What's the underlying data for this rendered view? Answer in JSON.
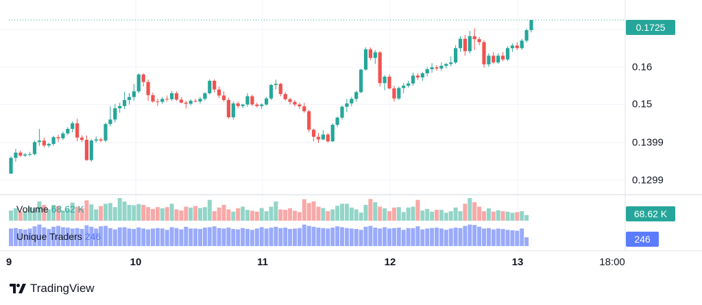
{
  "chart_data": {
    "type": "candlestick",
    "x_ticks": [
      "9",
      "10",
      "11",
      "12",
      "13",
      "18:00"
    ],
    "y_ticks": [
      "0.1299",
      "0.1399",
      "0.15",
      "0.16",
      "0.17"
    ],
    "ylim": [
      0.126,
      0.176
    ],
    "last_price": "0.1725",
    "colors": {
      "up": "#26a69a",
      "down": "#ef5350",
      "traders": "#5b7cff"
    },
    "candles": [
      [
        0.1316,
        0.1362,
        0.1316,
        0.1358
      ],
      [
        0.1358,
        0.1382,
        0.1348,
        0.1372
      ],
      [
        0.1372,
        0.1378,
        0.136,
        0.1364
      ],
      [
        0.1364,
        0.1371,
        0.136,
        0.1367
      ],
      [
        0.1367,
        0.1374,
        0.1362,
        0.1368
      ],
      [
        0.1368,
        0.1404,
        0.1365,
        0.14
      ],
      [
        0.14,
        0.1435,
        0.139,
        0.1404
      ],
      [
        0.1404,
        0.1412,
        0.1386,
        0.1391
      ],
      [
        0.1391,
        0.1398,
        0.1385,
        0.1395
      ],
      [
        0.1395,
        0.1417,
        0.139,
        0.1413
      ],
      [
        0.1413,
        0.142,
        0.14,
        0.141
      ],
      [
        0.141,
        0.1428,
        0.1406,
        0.1423
      ],
      [
        0.1423,
        0.144,
        0.1418,
        0.1435
      ],
      [
        0.1435,
        0.1455,
        0.1426,
        0.145
      ],
      [
        0.145,
        0.1462,
        0.1402,
        0.1412
      ],
      [
        0.1412,
        0.1418,
        0.14,
        0.1406
      ],
      [
        0.1406,
        0.1418,
        0.135,
        0.1352
      ],
      [
        0.1352,
        0.1408,
        0.1348,
        0.1404
      ],
      [
        0.1404,
        0.1415,
        0.1398,
        0.1407
      ],
      [
        0.1407,
        0.1412,
        0.14,
        0.1404
      ],
      [
        0.1404,
        0.1452,
        0.14,
        0.1448
      ],
      [
        0.1448,
        0.1495,
        0.1442,
        0.146
      ],
      [
        0.146,
        0.1502,
        0.1452,
        0.149
      ],
      [
        0.149,
        0.1505,
        0.1478,
        0.1496
      ],
      [
        0.1496,
        0.1534,
        0.1488,
        0.1512
      ],
      [
        0.1512,
        0.153,
        0.15,
        0.152
      ],
      [
        0.152,
        0.1555,
        0.151,
        0.1535
      ],
      [
        0.1535,
        0.1583,
        0.153,
        0.158
      ],
      [
        0.158,
        0.1583,
        0.1548,
        0.156
      ],
      [
        0.156,
        0.1567,
        0.151,
        0.1525
      ],
      [
        0.1525,
        0.1532,
        0.1505,
        0.1508
      ],
      [
        0.1508,
        0.1516,
        0.1496,
        0.1507
      ],
      [
        0.1507,
        0.152,
        0.1502,
        0.1515
      ],
      [
        0.1515,
        0.1524,
        0.1508,
        0.1514
      ],
      [
        0.1514,
        0.1536,
        0.151,
        0.153
      ],
      [
        0.153,
        0.1535,
        0.151,
        0.1513
      ],
      [
        0.1513,
        0.152,
        0.1503,
        0.1505
      ],
      [
        0.1505,
        0.151,
        0.149,
        0.1502
      ],
      [
        0.1502,
        0.1514,
        0.1498,
        0.151
      ],
      [
        0.151,
        0.1515,
        0.1505,
        0.1508
      ],
      [
        0.1508,
        0.152,
        0.1502,
        0.1515
      ],
      [
        0.1515,
        0.1533,
        0.151,
        0.153
      ],
      [
        0.153,
        0.1567,
        0.1526,
        0.1563
      ],
      [
        0.1563,
        0.1567,
        0.1532,
        0.154
      ],
      [
        0.154,
        0.1548,
        0.1517,
        0.1524
      ],
      [
        0.1524,
        0.1535,
        0.1508,
        0.1512
      ],
      [
        0.1512,
        0.1518,
        0.1462,
        0.1466
      ],
      [
        0.1466,
        0.1508,
        0.146,
        0.1503
      ],
      [
        0.1503,
        0.1508,
        0.149,
        0.1496
      ],
      [
        0.1496,
        0.1502,
        0.149,
        0.15
      ],
      [
        0.15,
        0.153,
        0.1494,
        0.1522
      ],
      [
        0.1522,
        0.1527,
        0.1496,
        0.15
      ],
      [
        0.15,
        0.1505,
        0.1492,
        0.1496
      ],
      [
        0.1496,
        0.1503,
        0.1488,
        0.15
      ],
      [
        0.15,
        0.152,
        0.1497,
        0.1516
      ],
      [
        0.1516,
        0.1555,
        0.1512,
        0.1552
      ],
      [
        0.1552,
        0.1566,
        0.154,
        0.1555
      ],
      [
        0.1555,
        0.1558,
        0.1522,
        0.1528
      ],
      [
        0.1528,
        0.1533,
        0.151,
        0.1514
      ],
      [
        0.1514,
        0.1518,
        0.15,
        0.1507
      ],
      [
        0.1507,
        0.1512,
        0.1495,
        0.15
      ],
      [
        0.15,
        0.1505,
        0.1488,
        0.1495
      ],
      [
        0.1495,
        0.1505,
        0.1478,
        0.1482
      ],
      [
        0.1482,
        0.1486,
        0.1426,
        0.1433
      ],
      [
        0.1433,
        0.1436,
        0.1402,
        0.1414
      ],
      [
        0.1414,
        0.1424,
        0.1398,
        0.1407
      ],
      [
        0.1407,
        0.1432,
        0.1405,
        0.142
      ],
      [
        0.142,
        0.1424,
        0.1398,
        0.1402
      ],
      [
        0.1402,
        0.145,
        0.14,
        0.1446
      ],
      [
        0.1446,
        0.1468,
        0.144,
        0.1465
      ],
      [
        0.1465,
        0.1498,
        0.146,
        0.1494
      ],
      [
        0.1494,
        0.1515,
        0.148,
        0.1503
      ],
      [
        0.1503,
        0.152,
        0.1495,
        0.1515
      ],
      [
        0.1515,
        0.1537,
        0.1508,
        0.1533
      ],
      [
        0.1533,
        0.1595,
        0.153,
        0.1593
      ],
      [
        0.1593,
        0.1652,
        0.159,
        0.1647
      ],
      [
        0.1647,
        0.1652,
        0.1618,
        0.1624
      ],
      [
        0.1624,
        0.1645,
        0.1608,
        0.1639
      ],
      [
        0.1639,
        0.1642,
        0.1548,
        0.1557
      ],
      [
        0.1557,
        0.1578,
        0.1538,
        0.1574
      ],
      [
        0.1574,
        0.158,
        0.154,
        0.1543
      ],
      [
        0.1543,
        0.155,
        0.1508,
        0.1516
      ],
      [
        0.1516,
        0.1548,
        0.1512,
        0.1544
      ],
      [
        0.1544,
        0.1557,
        0.153,
        0.155
      ],
      [
        0.155,
        0.1563,
        0.1545,
        0.1556
      ],
      [
        0.1556,
        0.1585,
        0.155,
        0.1577
      ],
      [
        0.1577,
        0.1583,
        0.1565,
        0.1572
      ],
      [
        0.1572,
        0.1587,
        0.1563,
        0.1583
      ],
      [
        0.1583,
        0.16,
        0.1575,
        0.1594
      ],
      [
        0.1594,
        0.161,
        0.1585,
        0.1599
      ],
      [
        0.1599,
        0.1605,
        0.159,
        0.1596
      ],
      [
        0.1596,
        0.1612,
        0.159,
        0.1603
      ],
      [
        0.1603,
        0.161,
        0.1596,
        0.1608
      ],
      [
        0.1608,
        0.1628,
        0.1602,
        0.1612
      ],
      [
        0.1612,
        0.1658,
        0.1608,
        0.165
      ],
      [
        0.165,
        0.1682,
        0.164,
        0.1675
      ],
      [
        0.1675,
        0.1685,
        0.163,
        0.1642
      ],
      [
        0.1642,
        0.1696,
        0.1636,
        0.1682
      ],
      [
        0.1682,
        0.1703,
        0.1645,
        0.1674
      ],
      [
        0.1674,
        0.168,
        0.1658,
        0.1666
      ],
      [
        0.1666,
        0.1671,
        0.1598,
        0.1607
      ],
      [
        0.1607,
        0.1636,
        0.16,
        0.163
      ],
      [
        0.163,
        0.164,
        0.1608,
        0.1612
      ],
      [
        0.1612,
        0.1636,
        0.1608,
        0.163
      ],
      [
        0.163,
        0.164,
        0.1615,
        0.162
      ],
      [
        0.162,
        0.1655,
        0.1616,
        0.165
      ],
      [
        0.165,
        0.1663,
        0.164,
        0.1657
      ],
      [
        0.1657,
        0.1666,
        0.1645,
        0.165
      ],
      [
        0.165,
        0.1675,
        0.1646,
        0.167
      ],
      [
        0.167,
        0.1702,
        0.1665,
        0.1698
      ],
      [
        0.1698,
        0.1725,
        0.1692,
        0.1725
      ]
    ]
  },
  "volume": {
    "label": "Volume",
    "value": "68.62 K",
    "values": [
      0.45,
      0.55,
      0.4,
      0.42,
      0.6,
      0.55,
      0.85,
      0.7,
      0.5,
      0.7,
      0.65,
      0.45,
      0.5,
      0.8,
      0.62,
      0.55,
      0.9,
      0.72,
      0.5,
      0.65,
      0.75,
      0.78,
      0.6,
      1.0,
      0.85,
      0.7,
      0.68,
      0.74,
      0.7,
      0.6,
      0.52,
      0.6,
      0.55,
      0.6,
      0.75,
      0.5,
      0.45,
      0.62,
      0.58,
      0.65,
      0.56,
      0.6,
      0.92,
      0.42,
      0.58,
      0.7,
      0.5,
      0.4,
      0.55,
      0.62,
      0.48,
      0.44,
      0.4,
      0.56,
      0.42,
      0.62,
      0.85,
      0.5,
      0.48,
      0.55,
      0.44,
      0.38,
      0.95,
      0.78,
      0.85,
      0.62,
      0.56,
      0.42,
      0.5,
      0.66,
      0.75,
      0.75,
      0.58,
      0.5,
      0.36,
      0.7,
      0.96,
      0.82,
      0.62,
      0.55,
      0.42,
      0.58,
      0.6,
      0.38,
      0.58,
      0.62,
      0.92,
      0.45,
      0.52,
      0.4,
      0.48,
      0.48,
      0.35,
      0.42,
      0.58,
      0.42,
      0.75,
      1.0,
      0.82,
      0.62,
      0.42,
      0.55,
      0.4,
      0.46,
      0.42,
      0.4,
      0.35,
      0.38,
      0.42,
      0.25
    ]
  },
  "traders": {
    "label": "Unique Traders",
    "value": "246",
    "values": [
      0.8,
      0.82,
      0.78,
      0.75,
      0.8,
      0.9,
      0.98,
      0.85,
      0.78,
      0.88,
      0.92,
      0.86,
      0.84,
      0.8,
      0.82,
      0.78,
      0.95,
      0.88,
      0.8,
      0.9,
      0.92,
      0.82,
      0.76,
      0.85,
      0.86,
      0.8,
      0.78,
      0.85,
      0.8,
      0.76,
      0.8,
      0.82,
      0.8,
      0.74,
      0.86,
      0.82,
      0.76,
      0.88,
      0.8,
      0.8,
      0.78,
      0.84,
      0.86,
      0.9,
      0.82,
      0.8,
      0.84,
      0.78,
      0.76,
      0.82,
      0.78,
      0.74,
      0.8,
      0.86,
      0.8,
      0.84,
      0.88,
      0.82,
      0.84,
      0.78,
      0.8,
      0.82,
      0.98,
      0.92,
      0.88,
      0.84,
      0.82,
      0.8,
      0.84,
      0.9,
      0.86,
      0.82,
      0.8,
      0.78,
      0.74,
      0.88,
      0.92,
      0.84,
      0.8,
      0.86,
      0.8,
      0.82,
      0.84,
      0.74,
      0.82,
      0.82,
      0.9,
      0.76,
      0.8,
      0.82,
      0.84,
      0.8,
      0.74,
      0.8,
      0.84,
      0.82,
      0.92,
      0.98,
      0.96,
      0.88,
      0.8,
      0.82,
      0.76,
      0.8,
      0.78,
      0.74,
      0.72,
      0.7,
      0.8,
      0.4
    ]
  },
  "brand": "TradingView"
}
